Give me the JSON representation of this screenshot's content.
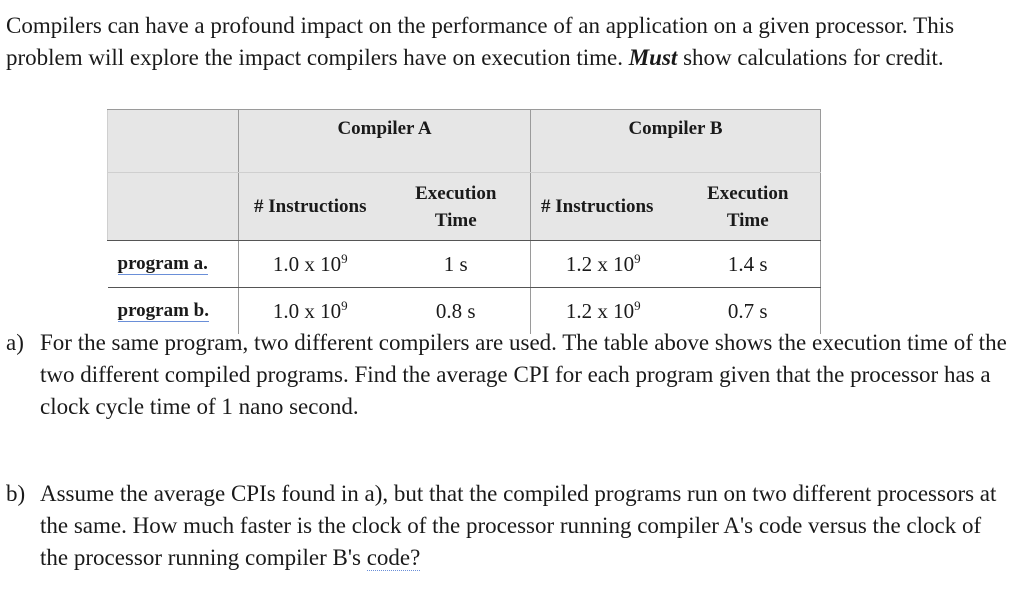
{
  "intro": {
    "part1": "Compilers can have a profound impact on the performance of an application on a given processor.  This problem will explore the impact compilers have on execution time.  ",
    "emphasis": "Must",
    "part2": " show calculations for credit."
  },
  "table": {
    "groups": [
      "Compiler A",
      "Compiler B"
    ],
    "subheaders": [
      "# Instructions",
      "Execution Time",
      "# Instructions",
      "Execution Time"
    ],
    "rows": [
      {
        "label": "program  a.",
        "a_instr": "1.0 x 10",
        "a_exp": "9",
        "a_time": "1 s",
        "b_instr": "1.2 x 10",
        "b_exp": "9",
        "b_time": "1.4 s"
      },
      {
        "label": "program  b.",
        "a_instr": "1.0 x 10",
        "a_exp": "9",
        "a_time": "0.8 s",
        "b_instr": "1.2 x 10",
        "b_exp": "9",
        "b_time": "0.7 s"
      }
    ]
  },
  "questions": {
    "a": {
      "marker": "a)",
      "text": "For the same program, two different compilers are used.  The table above shows the execution time of the two different compiled programs.  Find the average CPI for each program given that the processor has a clock cycle time of 1 nano second."
    },
    "b": {
      "marker": "b)",
      "text_before": "Assume the average CPIs found in a), but that the compiled programs run on two different processors at the same.  How much faster is the clock of the processor running compiler A's code versus the clock of the processor running compiler B's ",
      "underlined": "code?"
    }
  }
}
